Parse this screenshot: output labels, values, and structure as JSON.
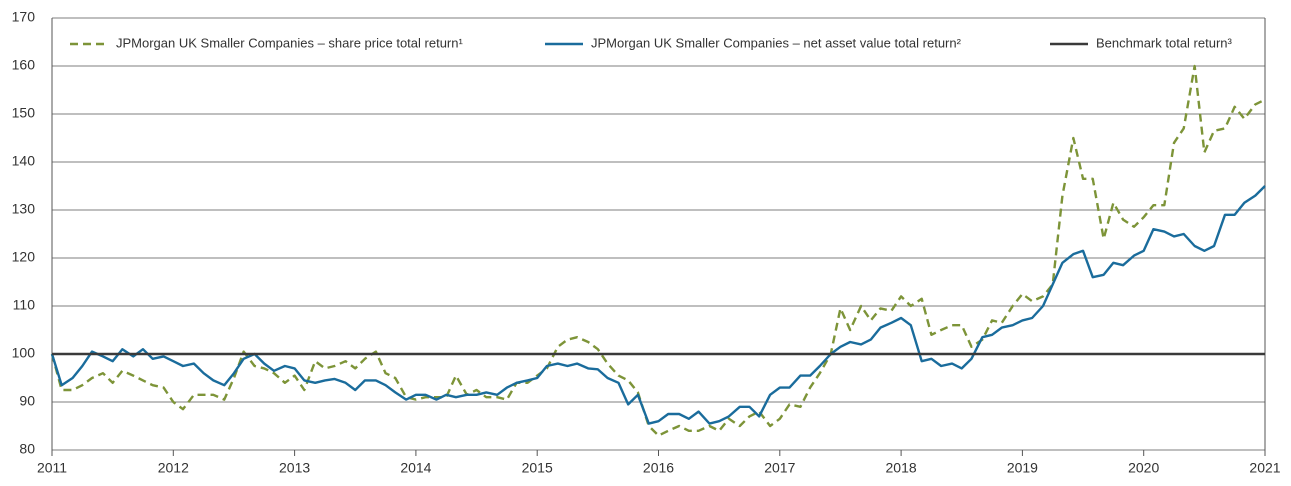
{
  "chart_data": {
    "type": "line",
    "legend": "top",
    "grid": true,
    "xlim": [
      2011,
      2021
    ],
    "xticks": [
      2011,
      2012,
      2013,
      2014,
      2015,
      2016,
      2017,
      2018,
      2019,
      2020,
      2021
    ],
    "ylim": [
      80,
      170
    ],
    "yticks": [
      80,
      90,
      100,
      110,
      120,
      130,
      140,
      150,
      160,
      170
    ],
    "x": [
      2011,
      2011.08,
      2011.17,
      2011.25,
      2011.33,
      2011.42,
      2011.5,
      2011.58,
      2011.67,
      2011.75,
      2011.83,
      2011.92,
      2012,
      2012.08,
      2012.17,
      2012.25,
      2012.33,
      2012.42,
      2012.5,
      2012.58,
      2012.67,
      2012.75,
      2012.83,
      2012.92,
      2013,
      2013.08,
      2013.17,
      2013.25,
      2013.33,
      2013.42,
      2013.5,
      2013.58,
      2013.67,
      2013.75,
      2013.83,
      2013.92,
      2014,
      2014.08,
      2014.17,
      2014.25,
      2014.33,
      2014.42,
      2014.5,
      2014.58,
      2014.67,
      2014.75,
      2014.83,
      2014.92,
      2015,
      2015.08,
      2015.17,
      2015.25,
      2015.33,
      2015.42,
      2015.5,
      2015.58,
      2015.67,
      2015.75,
      2015.83,
      2015.92,
      2016,
      2016.08,
      2016.17,
      2016.25,
      2016.33,
      2016.42,
      2016.5,
      2016.58,
      2016.67,
      2016.75,
      2016.83,
      2016.92,
      2017,
      2017.08,
      2017.17,
      2017.25,
      2017.33,
      2017.42,
      2017.5,
      2017.58,
      2017.67,
      2017.75,
      2017.83,
      2017.92,
      2018,
      2018.08,
      2018.17,
      2018.25,
      2018.33,
      2018.42,
      2018.5,
      2018.58,
      2018.67,
      2018.75,
      2018.83,
      2018.92,
      2019,
      2019.08,
      2019.17,
      2019.25,
      2019.33,
      2019.42,
      2019.5,
      2019.58,
      2019.67,
      2019.75,
      2019.83,
      2019.92,
      2020,
      2020.08,
      2020.17,
      2020.25,
      2020.33,
      2020.42,
      2020.5,
      2020.58,
      2020.67,
      2020.75,
      2020.83,
      2020.92,
      2021
    ],
    "series": [
      {
        "name": "JPMorgan UK Smaller Companies – share price total return¹",
        "color": "#7d9438",
        "style": "dashed",
        "values": [
          100,
          92.5,
          92.5,
          93.5,
          95,
          96,
          94,
          96.5,
          95.5,
          94.5,
          93.5,
          93,
          90,
          88.5,
          91.5,
          91.5,
          91.5,
          90.5,
          95,
          100.5,
          97.5,
          97,
          96,
          94,
          95.5,
          92.5,
          98.5,
          97,
          97.5,
          98.5,
          97,
          99,
          100.5,
          96,
          95,
          91,
          90.5,
          91,
          91,
          91,
          95.5,
          91.5,
          92.5,
          91,
          91,
          90.5,
          94,
          94,
          95.5,
          97,
          101.5,
          103,
          103.5,
          102.5,
          101,
          98,
          95.5,
          94.5,
          92,
          85,
          83,
          84,
          85,
          84,
          84,
          85,
          84,
          86.5,
          85,
          87,
          88,
          85,
          86.5,
          89.5,
          89,
          93,
          96,
          100,
          109.5,
          105,
          110,
          107,
          109.5,
          109,
          112,
          110,
          111.5,
          104,
          105,
          106,
          106,
          101.5,
          103,
          107,
          106.5,
          110,
          112.5,
          111,
          112,
          114.5,
          133,
          145,
          136.5,
          136.5,
          124,
          131.5,
          128,
          126.5,
          128.5,
          131,
          131,
          144,
          147,
          160,
          142,
          146.5,
          147,
          151.5,
          149,
          152,
          153
        ]
      },
      {
        "name": "JPMorgan UK Smaller Companies – net asset value total return²",
        "color": "#1a6c9c",
        "style": "solid",
        "values": [
          100,
          93.5,
          95,
          97.5,
          100.5,
          99.5,
          98.5,
          101,
          99.5,
          101,
          99,
          99.5,
          98.5,
          97.5,
          98,
          96,
          94.5,
          93.5,
          96,
          99,
          100,
          98,
          96.5,
          97.5,
          97,
          94.5,
          94,
          94.5,
          94.8,
          94,
          92.5,
          94.5,
          94.5,
          93.5,
          92,
          90.5,
          91.5,
          91.5,
          90.5,
          91.5,
          91,
          91.5,
          91.5,
          92,
          91.5,
          93,
          94,
          94.5,
          95,
          97.5,
          98,
          97.5,
          98,
          97,
          96.8,
          95,
          94,
          89.5,
          91.5,
          85.5,
          86,
          87.5,
          87.5,
          86.5,
          88,
          85.5,
          86,
          87,
          89,
          89,
          87,
          91.5,
          93,
          93,
          95.5,
          95.5,
          97.5,
          100,
          101.5,
          102.5,
          102,
          103,
          105.5,
          106.5,
          107.5,
          106,
          98.5,
          99,
          97.5,
          98,
          97,
          99,
          103.5,
          104,
          105.5,
          106,
          107,
          107.5,
          110,
          114.5,
          119,
          120.8,
          121.5,
          116,
          116.5,
          119,
          118.5,
          120.5,
          121.5,
          126,
          125.5,
          124.5,
          125,
          122.5,
          121.5,
          122.5,
          129,
          129,
          131.5,
          133,
          135
        ]
      },
      {
        "name": "Benchmark total return³",
        "color": "#3a3a3a",
        "style": "solid",
        "x": [
          2011,
          2021
        ],
        "values": [
          100,
          100
        ]
      }
    ]
  }
}
